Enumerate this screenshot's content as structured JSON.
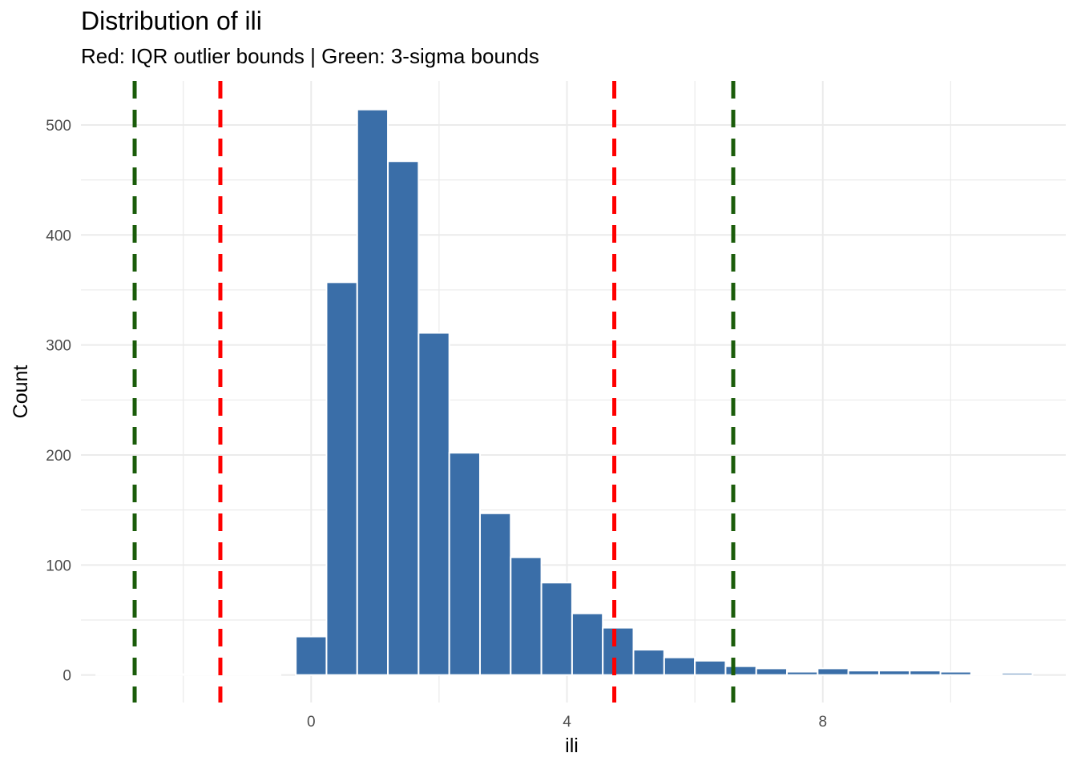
{
  "chart_data": {
    "type": "bar",
    "title": "Distribution of ili",
    "subtitle": "Red: IQR outlier bounds | Green: 3-sigma bounds",
    "xlabel": "ili",
    "ylabel": "Count",
    "xlim": [
      -3.6,
      11.8
    ],
    "ylim": [
      -25,
      540
    ],
    "xticks": [
      0,
      4,
      8
    ],
    "yticks": [
      0,
      100,
      200,
      300,
      400,
      500
    ],
    "grid": true,
    "bin_width": 0.48,
    "bins": [
      {
        "x": -3.12,
        "count": 0
      },
      {
        "x": -2.64,
        "count": 0
      },
      {
        "x": -2.16,
        "count": 0
      },
      {
        "x": -1.68,
        "count": 0
      },
      {
        "x": -1.2,
        "count": 0
      },
      {
        "x": -0.72,
        "count": 0
      },
      {
        "x": 0.0,
        "count": 35
      },
      {
        "x": 0.48,
        "count": 357
      },
      {
        "x": 0.96,
        "count": 514
      },
      {
        "x": 1.44,
        "count": 467
      },
      {
        "x": 1.92,
        "count": 311
      },
      {
        "x": 2.4,
        "count": 202
      },
      {
        "x": 2.88,
        "count": 147
      },
      {
        "x": 3.36,
        "count": 107
      },
      {
        "x": 3.84,
        "count": 84
      },
      {
        "x": 4.32,
        "count": 56
      },
      {
        "x": 4.8,
        "count": 43
      },
      {
        "x": 5.28,
        "count": 23
      },
      {
        "x": 5.76,
        "count": 16
      },
      {
        "x": 6.24,
        "count": 13
      },
      {
        "x": 6.72,
        "count": 8
      },
      {
        "x": 7.2,
        "count": 6
      },
      {
        "x": 7.68,
        "count": 3
      },
      {
        "x": 8.16,
        "count": 6
      },
      {
        "x": 8.64,
        "count": 4
      },
      {
        "x": 9.12,
        "count": 4
      },
      {
        "x": 9.6,
        "count": 4
      },
      {
        "x": 10.08,
        "count": 3
      },
      {
        "x": 10.56,
        "count": 0
      },
      {
        "x": 11.04,
        "count": 2
      }
    ],
    "reference_lines": [
      {
        "group": "3-sigma",
        "value": -2.76,
        "color": "#1a5c0a"
      },
      {
        "group": "IQR",
        "value": -1.42,
        "color": "#ff0000"
      },
      {
        "group": "IQR",
        "value": 4.74,
        "color": "#ff0000"
      },
      {
        "group": "3-sigma",
        "value": 6.6,
        "color": "#1a5c0a"
      }
    ],
    "bar_color": "#3a6ea8"
  }
}
